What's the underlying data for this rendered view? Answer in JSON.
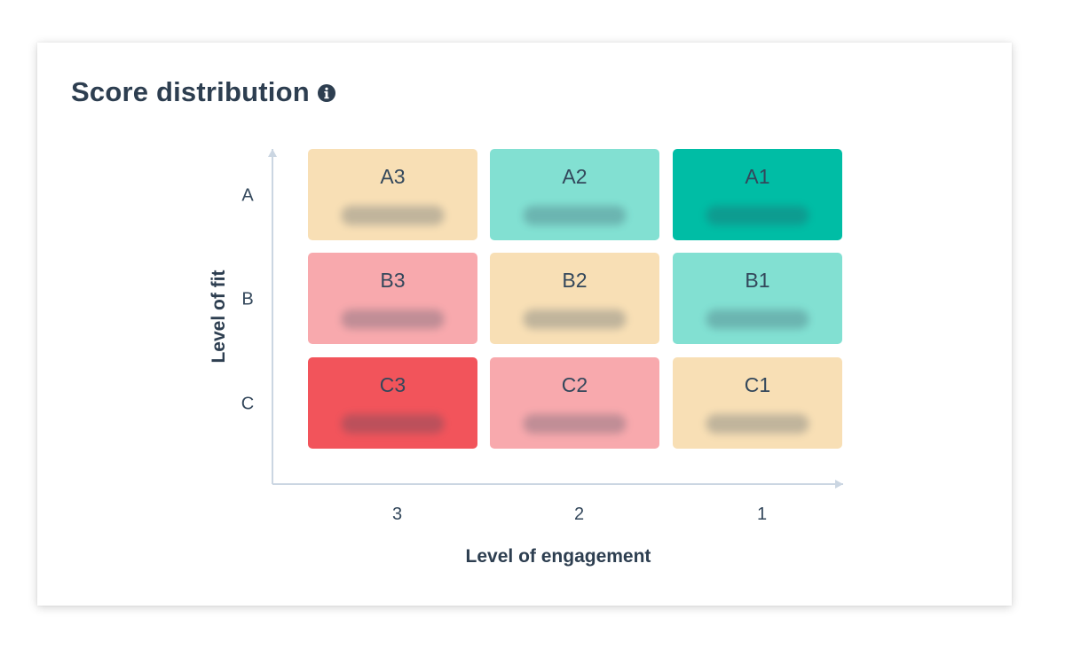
{
  "card": {
    "title": "Score distribution",
    "info_icon": "info-circle-icon"
  },
  "chart_data": {
    "type": "heatmap",
    "xlabel": "Level of engagement",
    "ylabel": "Level of fit",
    "x_categories": [
      "3",
      "2",
      "1"
    ],
    "y_categories": [
      "A",
      "B",
      "C"
    ],
    "grid": false,
    "cells": [
      {
        "label": "A3",
        "row": "A",
        "col": "3",
        "value": "",
        "color": "#f8dfb5"
      },
      {
        "label": "A2",
        "row": "A",
        "col": "2",
        "value": "",
        "color": "#82e0d2"
      },
      {
        "label": "A1",
        "row": "A",
        "col": "1",
        "value": "",
        "color": "#00bda5"
      },
      {
        "label": "B3",
        "row": "B",
        "col": "3",
        "value": "",
        "color": "#f8a9ad"
      },
      {
        "label": "B2",
        "row": "B",
        "col": "2",
        "value": "",
        "color": "#f8dfb5"
      },
      {
        "label": "B1",
        "row": "B",
        "col": "1",
        "value": "",
        "color": "#82e0d2"
      },
      {
        "label": "C3",
        "row": "C",
        "col": "3",
        "value": "",
        "color": "#f2545b"
      },
      {
        "label": "C2",
        "row": "C",
        "col": "2",
        "value": "",
        "color": "#f8a9ad"
      },
      {
        "label": "C1",
        "row": "C",
        "col": "1",
        "value": "",
        "color": "#f8dfb5"
      }
    ]
  },
  "colors": {
    "axis": "#cbd6e2",
    "text": "#33475b"
  }
}
